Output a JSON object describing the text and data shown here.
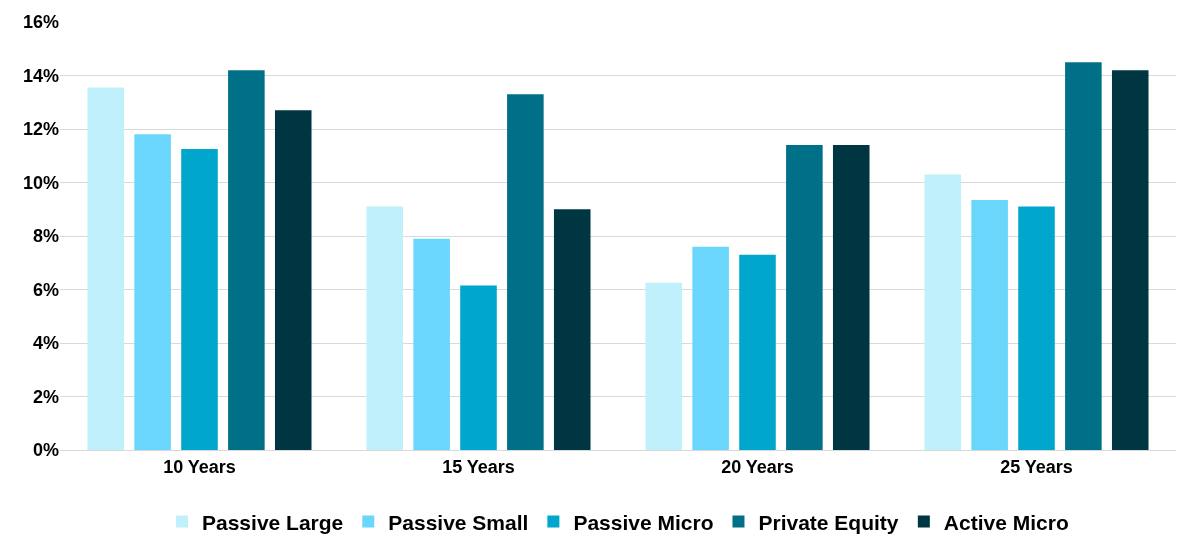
{
  "chart_data": {
    "type": "bar",
    "categories": [
      "10 Years",
      "15 Years",
      "20 Years",
      "25 Years"
    ],
    "series": [
      {
        "name": "Passive Large",
        "color": "#bff0fb",
        "values": [
          13.55,
          9.1,
          6.25,
          10.3
        ]
      },
      {
        "name": "Passive Small",
        "color": "#6bd6fb",
        "values": [
          11.8,
          7.9,
          7.6,
          9.35
        ]
      },
      {
        "name": "Passive Micro",
        "color": "#00a6cc",
        "values": [
          11.25,
          6.15,
          7.3,
          9.1
        ]
      },
      {
        "name": "Private Equity",
        "color": "#007088",
        "values": [
          14.2,
          13.3,
          11.4,
          14.5
        ]
      },
      {
        "name": "Active Micro",
        "color": "#003641",
        "values": [
          12.7,
          9.0,
          11.4,
          14.2
        ]
      }
    ],
    "ylim": [
      0,
      16
    ],
    "yticks": [
      {
        "value": 0,
        "label": "0%"
      },
      {
        "value": 2,
        "label": "2%"
      },
      {
        "value": 4,
        "label": "4%"
      },
      {
        "value": 6,
        "label": "6%"
      },
      {
        "value": 8,
        "label": "8%"
      },
      {
        "value": 10,
        "label": "10%"
      },
      {
        "value": 12,
        "label": "12%"
      },
      {
        "value": 14,
        "label": "14%"
      },
      {
        "value": 16,
        "label": "16%"
      }
    ],
    "grid": "y",
    "legend": "bottom"
  }
}
